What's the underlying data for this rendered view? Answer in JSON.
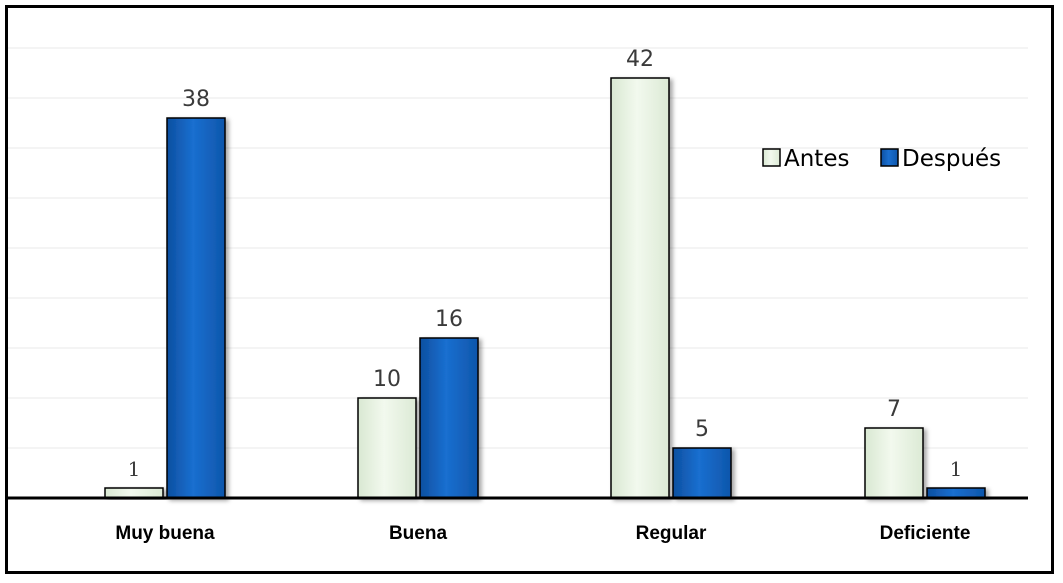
{
  "chart_data": {
    "type": "bar",
    "categories": [
      "Muy buena",
      "Buena",
      "Regular",
      "Deficiente"
    ],
    "series": [
      {
        "name": "Antes",
        "values": [
          1,
          10,
          42,
          7
        ],
        "color": "#e8f3e2"
      },
      {
        "name": "Después",
        "values": [
          38,
          16,
          5,
          1
        ],
        "color": "#1565c0"
      }
    ],
    "ylim": [
      0,
      45
    ],
    "grid": true,
    "legend_position": "top-right",
    "title": "",
    "xlabel": "",
    "ylabel": ""
  }
}
